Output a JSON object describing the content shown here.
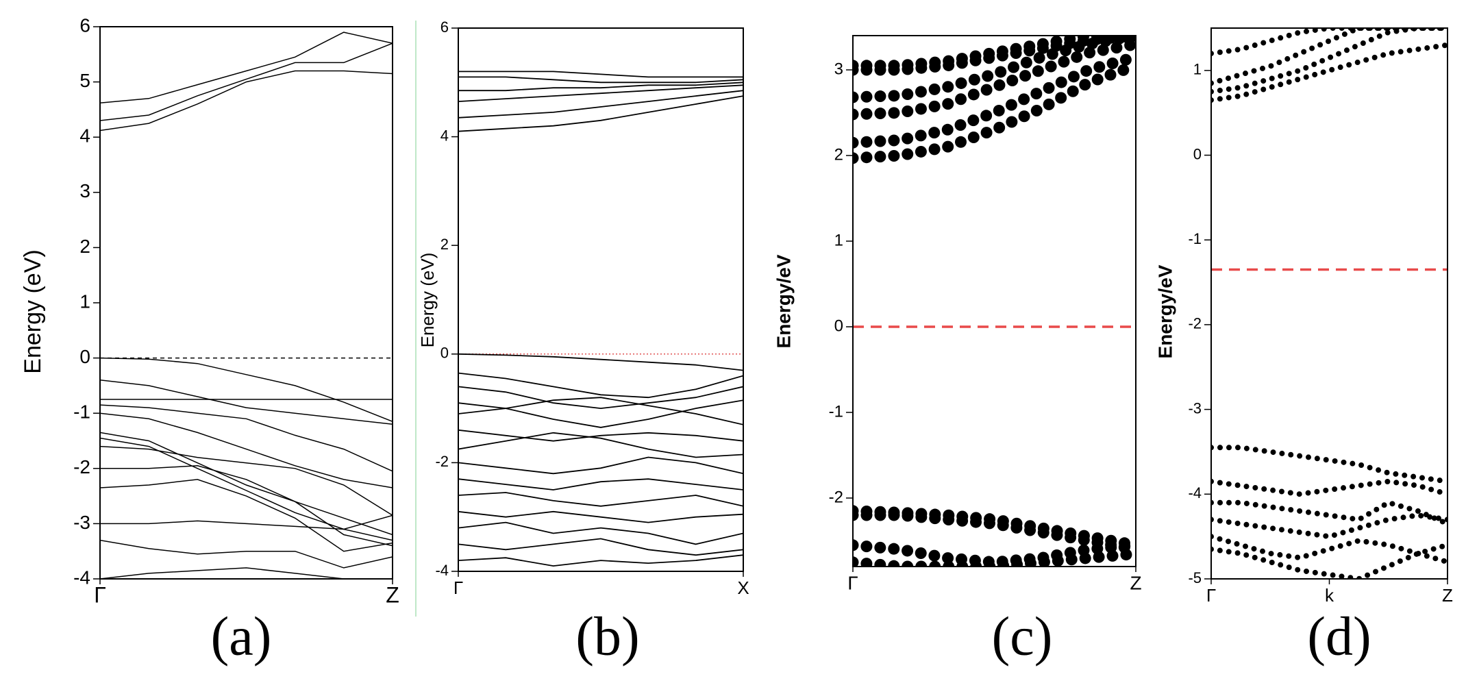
{
  "chart_data": [
    {
      "type": "line",
      "y_label": "Energy (eV)",
      "caption": "(a)",
      "categories": [
        "Γ",
        null,
        null,
        null,
        null,
        null,
        "Z"
      ],
      "ylim": [
        -4,
        6
      ],
      "yticks": [
        -4,
        -3,
        -2,
        -1,
        0,
        1,
        2,
        3,
        4,
        5,
        6
      ],
      "color": "#000000",
      "line_style": "solid",
      "hline": {
        "value": 0,
        "color": "#000000",
        "style": "dashed"
      },
      "series": [
        {
          "values": [
            4.62,
            4.7,
            4.95,
            5.2,
            5.45,
            5.9,
            5.7
          ]
        },
        {
          "values": [
            4.3,
            4.4,
            4.75,
            5.05,
            5.35,
            5.35,
            5.7
          ]
        },
        {
          "values": [
            4.12,
            4.25,
            4.6,
            5.0,
            5.2,
            5.2,
            5.15
          ]
        },
        {
          "values": [
            0,
            -0.02,
            -0.1,
            -0.3,
            -0.5,
            -0.8,
            -1.15
          ]
        },
        {
          "values": [
            -0.4,
            -0.5,
            -0.7,
            -0.9,
            -1.0,
            -1.1,
            -1.2
          ]
        },
        {
          "values": [
            -0.75,
            -0.75,
            -0.75,
            -0.75,
            -0.75,
            -0.75,
            -0.75
          ]
        },
        {
          "values": [
            -0.85,
            -0.9,
            -1.0,
            -1.1,
            -1.4,
            -1.65,
            -2.05
          ]
        },
        {
          "values": [
            -1.0,
            -1.1,
            -1.35,
            -1.65,
            -1.95,
            -2.2,
            -2.35
          ]
        },
        {
          "values": [
            -1.35,
            -1.5,
            -1.9,
            -2.3,
            -2.6,
            -2.9,
            -3.2
          ]
        },
        {
          "values": [
            -1.45,
            -1.6,
            -2.0,
            -2.4,
            -2.8,
            -3.1,
            -3.3
          ]
        },
        {
          "values": [
            -1.6,
            -1.65,
            -1.8,
            -1.9,
            -2.0,
            -2.3,
            -2.85
          ]
        },
        {
          "values": [
            -2.0,
            -2.0,
            -1.95,
            -2.2,
            -2.6,
            -3.2,
            -3.4
          ]
        },
        {
          "values": [
            -2.35,
            -2.3,
            -2.2,
            -2.5,
            -2.9,
            -3.5,
            -3.35
          ]
        },
        {
          "values": [
            -3.0,
            -3.0,
            -2.95,
            -3.0,
            -3.05,
            -3.1,
            -2.85
          ]
        },
        {
          "values": [
            -3.3,
            -3.45,
            -3.55,
            -3.5,
            -3.5,
            -3.8,
            -3.6
          ]
        },
        {
          "values": [
            -4.0,
            -3.9,
            -3.85,
            -3.8,
            -3.9,
            -4.0,
            -4.05
          ]
        }
      ]
    },
    {
      "type": "line",
      "y_label": "Energy (eV)",
      "caption": "(b)",
      "categories": [
        "Γ",
        null,
        null,
        null,
        null,
        null,
        "X"
      ],
      "ylim": [
        -4,
        6
      ],
      "yticks": [
        -4,
        -2,
        0,
        2,
        4,
        6
      ],
      "color": "#000000",
      "line_style": "solid",
      "hline": {
        "value": 0,
        "color": "#e05050",
        "style": "dotted"
      },
      "series": [
        {
          "values": [
            5.2,
            5.2,
            5.2,
            5.15,
            5.1,
            5.1,
            5.1
          ]
        },
        {
          "values": [
            5.1,
            5.1,
            5.05,
            5.0,
            5.0,
            5.0,
            5.05
          ]
        },
        {
          "values": [
            4.85,
            4.85,
            4.9,
            4.9,
            4.95,
            4.95,
            5.0
          ]
        },
        {
          "values": [
            4.65,
            4.7,
            4.75,
            4.8,
            4.85,
            4.9,
            4.95
          ]
        },
        {
          "values": [
            4.35,
            4.4,
            4.45,
            4.55,
            4.65,
            4.75,
            4.85
          ]
        },
        {
          "values": [
            4.1,
            4.15,
            4.2,
            4.3,
            4.45,
            4.6,
            4.75
          ]
        },
        {
          "values": [
            0,
            -0.02,
            -0.05,
            -0.1,
            -0.15,
            -0.2,
            -0.3
          ]
        },
        {
          "values": [
            -0.35,
            -0.45,
            -0.6,
            -0.75,
            -0.8,
            -0.65,
            -0.4
          ]
        },
        {
          "values": [
            -0.6,
            -0.7,
            -0.9,
            -1.0,
            -0.9,
            -0.8,
            -0.6
          ]
        },
        {
          "values": [
            -0.9,
            -1.0,
            -1.2,
            -1.35,
            -1.2,
            -1.0,
            -0.85
          ]
        },
        {
          "values": [
            -1.1,
            -1.0,
            -0.85,
            -0.8,
            -0.95,
            -1.1,
            -1.3
          ]
        },
        {
          "values": [
            -1.4,
            -1.5,
            -1.6,
            -1.5,
            -1.45,
            -1.5,
            -1.6
          ]
        },
        {
          "values": [
            -1.75,
            -1.6,
            -1.45,
            -1.55,
            -1.75,
            -1.9,
            -1.85
          ]
        },
        {
          "values": [
            -2.0,
            -2.1,
            -2.2,
            -2.1,
            -1.9,
            -2.0,
            -2.2
          ]
        },
        {
          "values": [
            -2.3,
            -2.4,
            -2.5,
            -2.35,
            -2.3,
            -2.4,
            -2.5
          ]
        },
        {
          "values": [
            -2.6,
            -2.55,
            -2.7,
            -2.8,
            -2.7,
            -2.6,
            -2.8
          ]
        },
        {
          "values": [
            -2.9,
            -3.0,
            -2.9,
            -3.0,
            -3.1,
            -3.0,
            -2.95
          ]
        },
        {
          "values": [
            -3.2,
            -3.1,
            -3.3,
            -3.2,
            -3.3,
            -3.5,
            -3.3
          ]
        },
        {
          "values": [
            -3.5,
            -3.6,
            -3.5,
            -3.4,
            -3.6,
            -3.7,
            -3.6
          ]
        },
        {
          "values": [
            -3.8,
            -3.75,
            -3.9,
            -3.8,
            -3.85,
            -3.8,
            -3.7
          ]
        }
      ]
    },
    {
      "type": "line",
      "y_label": "Energy/eV",
      "caption": "(c)",
      "categories": [
        "Γ",
        null,
        null,
        null,
        null,
        null,
        "Z"
      ],
      "ylim": [
        -2.8,
        3.4
      ],
      "yticks": [
        -2,
        -1,
        0,
        1,
        2,
        3
      ],
      "color": "#000000",
      "line_style": "dotted",
      "hline": {
        "value": 0,
        "color": "#e84a4a",
        "style": "dashed"
      },
      "series": [
        {
          "values": [
            1.97,
            2.0,
            2.1,
            2.3,
            2.55,
            2.85,
            3.05
          ]
        },
        {
          "values": [
            2.15,
            2.18,
            2.3,
            2.5,
            2.75,
            3.0,
            3.15
          ]
        },
        {
          "values": [
            2.48,
            2.5,
            2.6,
            2.8,
            3.0,
            3.2,
            3.3
          ]
        },
        {
          "values": [
            2.68,
            2.7,
            2.8,
            2.95,
            3.15,
            3.3,
            3.4
          ]
        },
        {
          "values": [
            3.0,
            3.0,
            3.05,
            3.15,
            3.25,
            3.35,
            3.4
          ]
        },
        {
          "values": [
            3.05,
            3.05,
            3.1,
            3.2,
            3.3,
            3.4,
            3.4
          ]
        },
        {
          "values": [
            -2.15,
            -2.17,
            -2.2,
            -2.25,
            -2.35,
            -2.45,
            -2.55
          ]
        },
        {
          "values": [
            -2.2,
            -2.2,
            -2.25,
            -2.3,
            -2.4,
            -2.5,
            -2.6
          ]
        },
        {
          "values": [
            -2.55,
            -2.6,
            -2.7,
            -2.75,
            -2.7,
            -2.6,
            -2.55
          ]
        },
        {
          "values": [
            -2.75,
            -2.8,
            -2.8,
            -2.8,
            -2.75,
            -2.7,
            -2.65
          ]
        }
      ]
    },
    {
      "type": "line",
      "y_label": "Energy/eV",
      "caption": "(d)",
      "categories": [
        "Γ",
        null,
        null,
        null,
        "k",
        null,
        null,
        null,
        "Z"
      ],
      "ylim": [
        -5,
        1.5
      ],
      "yticks": [
        -5,
        -4,
        -3,
        -2,
        -1,
        0,
        1
      ],
      "color": "#000000",
      "line_style": "dotted",
      "hline": {
        "value": -1.35,
        "color": "#e84a4a",
        "style": "dashed"
      },
      "series": [
        {
          "values": [
            0.65,
            0.7,
            0.8,
            0.9,
            1.0,
            1.1,
            1.2,
            1.25,
            1.3
          ]
        },
        {
          "values": [
            0.75,
            0.8,
            0.9,
            1.0,
            1.15,
            1.3,
            1.45,
            1.5,
            1.5
          ]
        },
        {
          "values": [
            0.85,
            0.95,
            1.05,
            1.2,
            1.35,
            1.5,
            1.5,
            1.5,
            1.5
          ]
        },
        {
          "values": [
            1.2,
            1.25,
            1.35,
            1.45,
            1.5,
            1.5,
            1.5,
            1.5,
            1.5
          ]
        },
        {
          "values": [
            -3.45,
            -3.45,
            -3.5,
            -3.55,
            -3.6,
            -3.65,
            -3.75,
            -3.8,
            -3.85
          ]
        },
        {
          "values": [
            -3.85,
            -3.9,
            -3.95,
            -4.0,
            -3.95,
            -3.9,
            -3.85,
            -3.9,
            -4.0
          ]
        },
        {
          "values": [
            -4.1,
            -4.1,
            -4.15,
            -4.2,
            -4.25,
            -4.3,
            -4.1,
            -4.2,
            -4.35
          ]
        },
        {
          "values": [
            -4.3,
            -4.35,
            -4.4,
            -4.45,
            -4.5,
            -4.4,
            -4.3,
            -4.25,
            -4.3
          ]
        },
        {
          "values": [
            -4.5,
            -4.6,
            -4.7,
            -4.75,
            -4.65,
            -4.55,
            -4.6,
            -4.7,
            -4.8
          ]
        },
        {
          "values": [
            -4.65,
            -4.7,
            -4.8,
            -4.9,
            -4.95,
            -5.0,
            -4.85,
            -4.7,
            -4.6
          ]
        }
      ]
    }
  ]
}
